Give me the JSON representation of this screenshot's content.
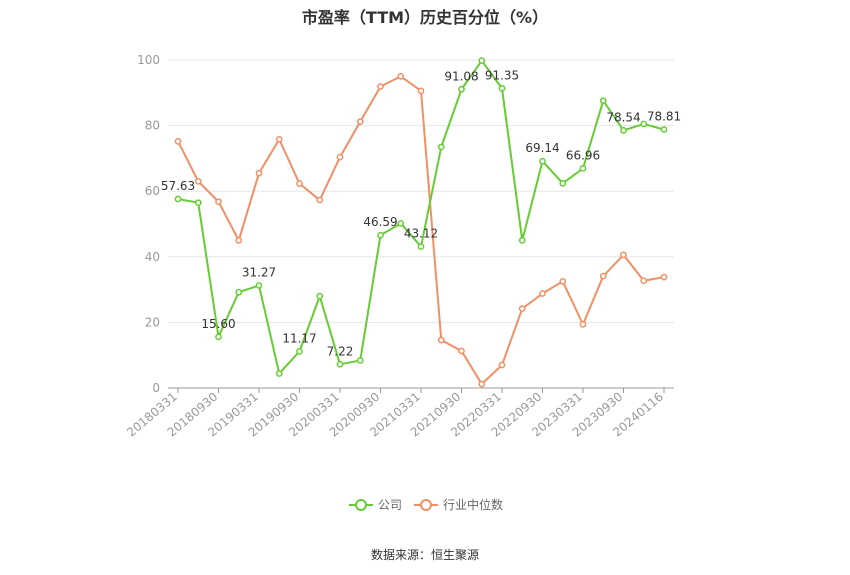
{
  "title": "市盈率（TTM）历史百分位（%）",
  "source": "数据来源：恒生聚源",
  "colors": {
    "company": "#66cc33",
    "industry": "#f28f64",
    "grid": "#e6e6e6",
    "axis": "#999999"
  },
  "chart_data": {
    "type": "line",
    "title": "市盈率（TTM）历史百分位（%）",
    "xlabel": "",
    "ylabel": "",
    "ylim": [
      0,
      100
    ],
    "yticks": [
      0,
      20,
      40,
      60,
      80,
      100
    ],
    "grid": true,
    "legend_position": "bottom",
    "x": [
      "20180331",
      "20180630",
      "20180930",
      "20181231",
      "20190331",
      "20190630",
      "20190930",
      "20191231",
      "20200331",
      "20200630",
      "20200930",
      "20201231",
      "20210331",
      "20210630",
      "20210930",
      "20211231",
      "20220331",
      "20220630",
      "20220930",
      "20221231",
      "20230331",
      "20230630",
      "20230930",
      "20231231",
      "20240116"
    ],
    "x_tick_labels": [
      "20180331",
      "20180930",
      "20190331",
      "20190930",
      "20200331",
      "20200930",
      "20210331",
      "20210930",
      "20220331",
      "20220930",
      "20230331",
      "20230930",
      "20240116"
    ],
    "series": [
      {
        "name": "公司",
        "values": [
          57.63,
          56.5,
          15.6,
          29.2,
          31.27,
          4.4,
          11.17,
          28.0,
          7.22,
          8.4,
          46.59,
          50.2,
          43.12,
          73.5,
          91.08,
          99.8,
          91.35,
          45.0,
          69.14,
          62.4,
          66.96,
          87.6,
          78.54,
          80.5,
          78.81
        ],
        "labels": {
          "0": "57.63",
          "2": "15.60",
          "4": "31.27",
          "6": "11.17",
          "8": "7.22",
          "10": "46.59",
          "12": "43.12",
          "14": "91.08",
          "16": "91.35",
          "18": "69.14",
          "20": "66.96",
          "22": "78.54",
          "24": "78.81"
        }
      },
      {
        "name": "行业中位数",
        "values": [
          75.2,
          63.0,
          56.8,
          45.0,
          65.5,
          75.8,
          62.3,
          57.3,
          70.4,
          81.2,
          91.9,
          95.0,
          90.6,
          14.6,
          11.3,
          1.2,
          7.0,
          24.2,
          28.8,
          32.5,
          19.4,
          34.1,
          40.6,
          32.7,
          33.8
        ]
      }
    ]
  }
}
